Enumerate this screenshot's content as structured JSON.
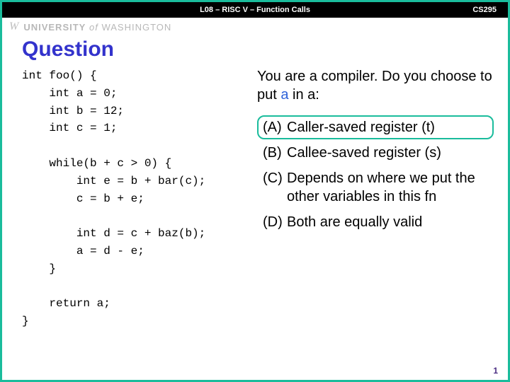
{
  "topbar": {
    "title": "L08 – RISC V – Function Calls",
    "course": "CS295"
  },
  "uw": {
    "logo": "W",
    "university": "UNIVERSITY",
    "of": "of",
    "washington": "WASHINGTON"
  },
  "slide": {
    "title": "Question",
    "code": "int foo() {\n    int a = 0;\n    int b = 12;\n    int c = 1;\n\n    while(b + c > 0) {\n        int e = b + bar(c);\n        c = b + e;\n\n        int d = c + baz(b);\n        a = d - e;\n    }\n\n    return a;\n}",
    "prompt_pre": "You are a compiler. Do you choose to put ",
    "prompt_var": "a",
    "prompt_post": " in a:",
    "options": [
      {
        "letter": "(A)",
        "text": "Caller-saved register (t)",
        "selected": true
      },
      {
        "letter": "(B)",
        "text": "Callee-saved register (s)",
        "selected": false
      },
      {
        "letter": "(C)",
        "text": "Depends on where we put the other variables in this fn",
        "selected": false
      },
      {
        "letter": "(D)",
        "text": "Both are equally valid",
        "selected": false
      }
    ],
    "page_number": "1"
  },
  "colors": {
    "border": "#1abc9c",
    "title": "#3333cc",
    "var": "#2e62d9",
    "pagenum": "#4b2e83"
  }
}
